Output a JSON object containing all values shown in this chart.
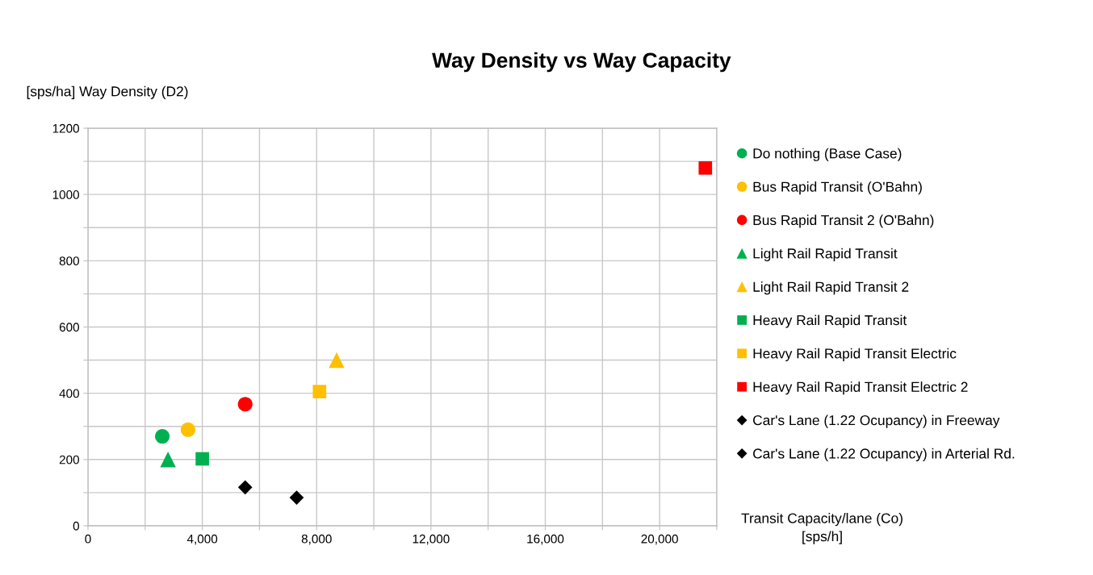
{
  "chart_data": {
    "type": "scatter",
    "title": "Way Density vs Way Capacity",
    "xlabel": "Transit Capacity/lane (Co)\n[sps/h]",
    "ylabel": "[sps/ha] Way Density (D2)",
    "xlim": [
      0,
      22000
    ],
    "xticks": [
      0,
      {
        "value": 2000,
        "label": null
      },
      {
        "value": 4000,
        "label": "4,000"
      },
      {
        "value": 6000,
        "label": null
      },
      {
        "value": 8000,
        "label": "8,000"
      },
      {
        "value": 10000,
        "label": null
      },
      {
        "value": 12000,
        "label": "12,000"
      },
      {
        "value": 14000,
        "label": null
      },
      {
        "value": 16000,
        "label": "16,000"
      },
      {
        "value": 18000,
        "label": null
      },
      {
        "value": 20000,
        "label": "20,000"
      },
      {
        "value": 22000,
        "label": null
      }
    ],
    "ylim": [
      0,
      1200
    ],
    "yticks": [
      0,
      {
        "value": 100,
        "label": null
      },
      200,
      {
        "value": 300,
        "label": null
      },
      400,
      {
        "value": 500,
        "label": null
      },
      600,
      {
        "value": 700,
        "label": null
      },
      800,
      {
        "value": 900,
        "label": null
      },
      1000,
      {
        "value": 1100,
        "label": null
      },
      1200
    ],
    "grid": true,
    "legend": "right",
    "series": [
      {
        "name": "Do nothing (Base Case)",
        "color": "#00b050",
        "marker": "circle",
        "x": [
          2600
        ],
        "values": [
          270
        ]
      },
      {
        "name": "Bus Rapid Transit (O'Bahn)",
        "color": "#ffc000",
        "marker": "circle",
        "x": [
          3500
        ],
        "values": [
          290
        ]
      },
      {
        "name": "Bus Rapid Transit 2 (O'Bahn)",
        "color": "#ff0000",
        "marker": "circle",
        "x": [
          5500
        ],
        "values": [
          367
        ]
      },
      {
        "name": "Light Rail Rapid Transit",
        "color": "#00b050",
        "marker": "triangle",
        "x": [
          2800
        ],
        "values": [
          200
        ]
      },
      {
        "name": "Light Rail Rapid Transit 2",
        "color": "#ffc000",
        "marker": "triangle",
        "x": [
          8700
        ],
        "values": [
          500
        ]
      },
      {
        "name": "Heavy Rail Rapid Transit",
        "color": "#00b050",
        "marker": "square",
        "x": [
          4000
        ],
        "values": [
          202
        ]
      },
      {
        "name": "Heavy Rail Rapid Transit Electric",
        "color": "#ffc000",
        "marker": "square",
        "x": [
          8100
        ],
        "values": [
          405
        ]
      },
      {
        "name": "Heavy Rail Rapid Transit Electric 2",
        "color": "#ff0000",
        "marker": "square",
        "x": [
          21600
        ],
        "values": [
          1080
        ]
      },
      {
        "name": "Car's Lane (1.22 Ocupancy) in Freeway",
        "color": "#000000",
        "marker": "diamond",
        "x": [
          5500
        ],
        "values": [
          116
        ]
      },
      {
        "name": "Car's Lane (1.22 Ocupancy) in Arterial Rd.",
        "color": "#000000",
        "marker": "diamond",
        "x": [
          7300
        ],
        "values": [
          85
        ]
      }
    ]
  }
}
